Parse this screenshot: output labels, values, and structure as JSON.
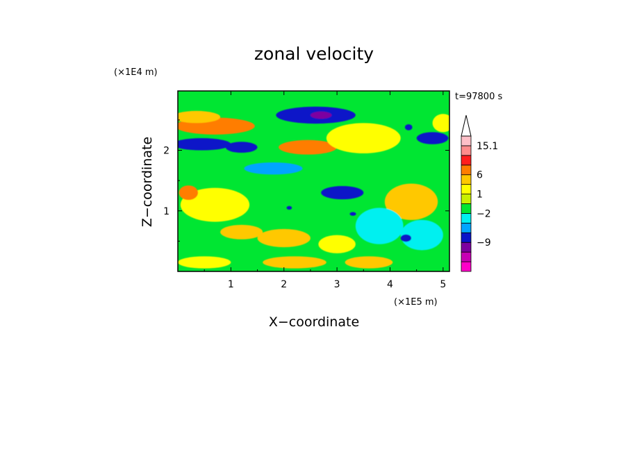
{
  "chart_data": {
    "type": "heatmap",
    "title": "zonal velocity",
    "xlabel": "X−coordinate",
    "ylabel": "Z−coordinate",
    "x_unit": "(×1E5 m)",
    "y_unit": "(×1E4 m)",
    "time_label": "t=97800 s",
    "x_ticks": [
      "1",
      "2",
      "3",
      "4",
      "5"
    ],
    "x_tick_values": [
      1,
      2,
      3,
      4,
      5
    ],
    "y_ticks": [
      "1",
      "2"
    ],
    "y_tick_values": [
      1,
      2
    ],
    "xlim": [
      0,
      5.12
    ],
    "ylim": [
      0,
      2.98
    ],
    "colorbar": {
      "labels": [
        "15.1",
        "6",
        "1",
        "−2",
        "−9"
      ],
      "colors": [
        "#ff00c8",
        "#c800b4",
        "#7d00a0",
        "#0a14c8",
        "#00a5ff",
        "#00f0f0",
        "#00e632",
        "#c8f000",
        "#ffff00",
        "#ffc800",
        "#ff7d00",
        "#ff1e1e",
        "#ff8c8c",
        "#ffc0c8"
      ],
      "extend_max": true
    },
    "features": [
      {
        "x": 0.7,
        "z": 2.4,
        "rx": 0.75,
        "rz": 0.14,
        "level": 10
      },
      {
        "x": 0.35,
        "z": 2.55,
        "rx": 0.45,
        "rz": 0.1,
        "level": 9
      },
      {
        "x": 0.45,
        "z": 2.1,
        "rx": 0.55,
        "rz": 0.1,
        "level": 3
      },
      {
        "x": 1.2,
        "z": 2.05,
        "rx": 0.3,
        "rz": 0.09,
        "level": 3
      },
      {
        "x": 2.6,
        "z": 2.58,
        "rx": 0.75,
        "rz": 0.14,
        "level": 3
      },
      {
        "x": 2.7,
        "z": 2.58,
        "rx": 0.2,
        "rz": 0.06,
        "level": 2
      },
      {
        "x": 2.45,
        "z": 2.05,
        "rx": 0.55,
        "rz": 0.12,
        "level": 10
      },
      {
        "x": 3.5,
        "z": 2.2,
        "rx": 0.7,
        "rz": 0.25,
        "level": 8
      },
      {
        "x": 1.8,
        "z": 1.7,
        "rx": 0.55,
        "rz": 0.1,
        "level": 4
      },
      {
        "x": 3.1,
        "z": 1.3,
        "rx": 0.4,
        "rz": 0.11,
        "level": 3
      },
      {
        "x": 0.7,
        "z": 1.1,
        "rx": 0.65,
        "rz": 0.28,
        "level": 8
      },
      {
        "x": 4.4,
        "z": 1.15,
        "rx": 0.5,
        "rz": 0.3,
        "level": 9
      },
      {
        "x": 0.2,
        "z": 1.3,
        "rx": 0.18,
        "rz": 0.12,
        "level": 10
      },
      {
        "x": 3.8,
        "z": 0.75,
        "rx": 0.45,
        "rz": 0.3,
        "level": 5
      },
      {
        "x": 4.6,
        "z": 0.6,
        "rx": 0.4,
        "rz": 0.25,
        "level": 5
      },
      {
        "x": 4.3,
        "z": 0.55,
        "rx": 0.1,
        "rz": 0.06,
        "level": 3
      },
      {
        "x": 1.2,
        "z": 0.65,
        "rx": 0.4,
        "rz": 0.12,
        "level": 9
      },
      {
        "x": 2.0,
        "z": 0.55,
        "rx": 0.5,
        "rz": 0.15,
        "level": 9
      },
      {
        "x": 3.0,
        "z": 0.45,
        "rx": 0.35,
        "rz": 0.15,
        "level": 8
      },
      {
        "x": 0.5,
        "z": 0.15,
        "rx": 0.5,
        "rz": 0.1,
        "level": 8
      },
      {
        "x": 2.2,
        "z": 0.15,
        "rx": 0.6,
        "rz": 0.1,
        "level": 9
      },
      {
        "x": 3.6,
        "z": 0.15,
        "rx": 0.45,
        "rz": 0.1,
        "level": 9
      },
      {
        "x": 4.8,
        "z": 2.2,
        "rx": 0.3,
        "rz": 0.1,
        "level": 3
      },
      {
        "x": 5.0,
        "z": 2.45,
        "rx": 0.2,
        "rz": 0.15,
        "level": 8
      },
      {
        "x": 2.1,
        "z": 1.05,
        "rx": 0.05,
        "rz": 0.03,
        "level": 3
      },
      {
        "x": 3.3,
        "z": 0.95,
        "rx": 0.06,
        "rz": 0.03,
        "level": 3
      },
      {
        "x": 4.35,
        "z": 2.38,
        "rx": 0.07,
        "rz": 0.05,
        "level": 3
      }
    ]
  }
}
